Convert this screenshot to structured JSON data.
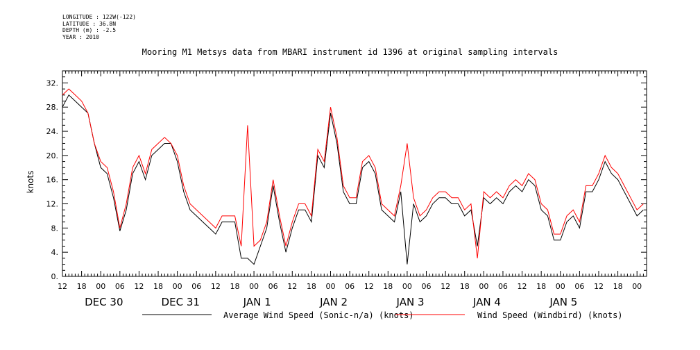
{
  "header": {
    "meta_lines": [
      "LONGITUDE : 122W(-122)",
      "LATITUDE : 36.8N",
      "DEPTH (m) : -2.5",
      "YEAR : 2010"
    ]
  },
  "chart_data": {
    "type": "line",
    "title": "Mooring M1 Metsys data from MBARI instrument id 1396 at original sampling intervals",
    "ylabel": "knots",
    "xlabel": "",
    "x_units": "hours since DEC 30 00",
    "xlim": [
      -12,
      171
    ],
    "ylim": [
      0,
      34
    ],
    "y_ticks": [
      "0.",
      "4.",
      "8.",
      "12.",
      "16.",
      "20.",
      "24.",
      "28.",
      "32."
    ],
    "y_tick_values": [
      0,
      4,
      8,
      12,
      16,
      20,
      24,
      28,
      32
    ],
    "hour_tick_labels": [
      "00",
      "06",
      "12",
      "18"
    ],
    "day_labels": [
      {
        "label": "DEC 30",
        "hour": 0
      },
      {
        "label": "DEC 31",
        "hour": 24
      },
      {
        "label": "JAN  1",
        "hour": 48
      },
      {
        "label": "JAN  2",
        "hour": 72
      },
      {
        "label": "JAN  3",
        "hour": 96
      },
      {
        "label": "JAN  4",
        "hour": 120
      },
      {
        "label": "JAN  5",
        "hour": 144
      }
    ],
    "grid": false,
    "legend_position": "bottom",
    "series": [
      {
        "name": "Average Wind Speed (Sonic-n/a) (knots)",
        "color": "#000000",
        "x": [
          -12,
          -10,
          -8,
          -6,
          -4,
          -2,
          0,
          2,
          4,
          6,
          8,
          10,
          12,
          14,
          16,
          18,
          20,
          22,
          24,
          26,
          28,
          30,
          32,
          34,
          36,
          38,
          40,
          42,
          44,
          46,
          48,
          50,
          52,
          54,
          56,
          58,
          60,
          62,
          64,
          66,
          68,
          70,
          72,
          74,
          76,
          78,
          80,
          82,
          84,
          86,
          88,
          90,
          92,
          94,
          96,
          98,
          100,
          102,
          104,
          106,
          108,
          110,
          112,
          114,
          116,
          118,
          120,
          122,
          124,
          126,
          128,
          130,
          132,
          134,
          136,
          138,
          140,
          142,
          144,
          146,
          148,
          150,
          152,
          154,
          156,
          158,
          160,
          162,
          164,
          166,
          168,
          170
        ],
        "y": [
          28,
          30,
          29,
          28,
          27,
          22,
          18,
          17,
          13,
          7.5,
          11,
          17,
          19,
          16,
          20,
          21,
          22,
          22,
          19,
          14,
          11,
          10,
          9,
          8,
          7,
          9,
          9,
          9,
          3,
          3,
          2,
          5,
          8,
          15,
          9,
          4,
          8,
          11,
          11,
          9,
          20,
          18,
          27,
          22,
          14,
          12,
          12,
          18,
          19,
          17,
          11,
          10,
          9,
          14,
          2,
          12,
          9,
          10,
          12,
          13,
          13,
          12,
          12,
          10,
          11,
          5,
          13,
          12,
          13,
          12,
          14,
          15,
          14,
          16,
          15,
          11,
          10,
          6,
          6,
          9,
          10,
          8,
          14,
          14,
          16,
          19,
          17,
          16,
          14,
          12,
          10,
          11
        ]
      },
      {
        "name": "Wind Speed (Windbird) (knots)",
        "color": "#ff0000",
        "x": [
          -12,
          -10,
          -8,
          -6,
          -4,
          -2,
          0,
          2,
          4,
          6,
          8,
          10,
          12,
          14,
          16,
          18,
          20,
          22,
          24,
          26,
          28,
          30,
          32,
          34,
          36,
          38,
          40,
          42,
          44,
          46,
          48,
          50,
          52,
          54,
          56,
          58,
          60,
          62,
          64,
          66,
          68,
          70,
          72,
          74,
          76,
          78,
          80,
          82,
          84,
          86,
          88,
          90,
          92,
          94,
          96,
          98,
          100,
          102,
          104,
          106,
          108,
          110,
          112,
          114,
          116,
          118,
          120,
          122,
          124,
          126,
          128,
          130,
          132,
          134,
          136,
          138,
          140,
          142,
          144,
          146,
          148,
          150,
          152,
          154,
          156,
          158,
          160,
          162,
          164,
          166,
          168,
          170
        ],
        "y": [
          30,
          31,
          30,
          29,
          27,
          22,
          19,
          18,
          14,
          8,
          12,
          18,
          20,
          17,
          21,
          22,
          23,
          22,
          20,
          15,
          12,
          11,
          10,
          9,
          8,
          10,
          10,
          10,
          5,
          25,
          5,
          6,
          9,
          16,
          10,
          5,
          9,
          12,
          12,
          10,
          21,
          19,
          28,
          23,
          15,
          13,
          13,
          19,
          20,
          18,
          12,
          11,
          10,
          15,
          22,
          13,
          10,
          11,
          13,
          14,
          14,
          13,
          13,
          11,
          12,
          3,
          14,
          13,
          14,
          13,
          15,
          16,
          15,
          17,
          16,
          12,
          11,
          7,
          7,
          10,
          11,
          9,
          15,
          15,
          17,
          20,
          18,
          17,
          15,
          13,
          11,
          12
        ]
      }
    ]
  }
}
